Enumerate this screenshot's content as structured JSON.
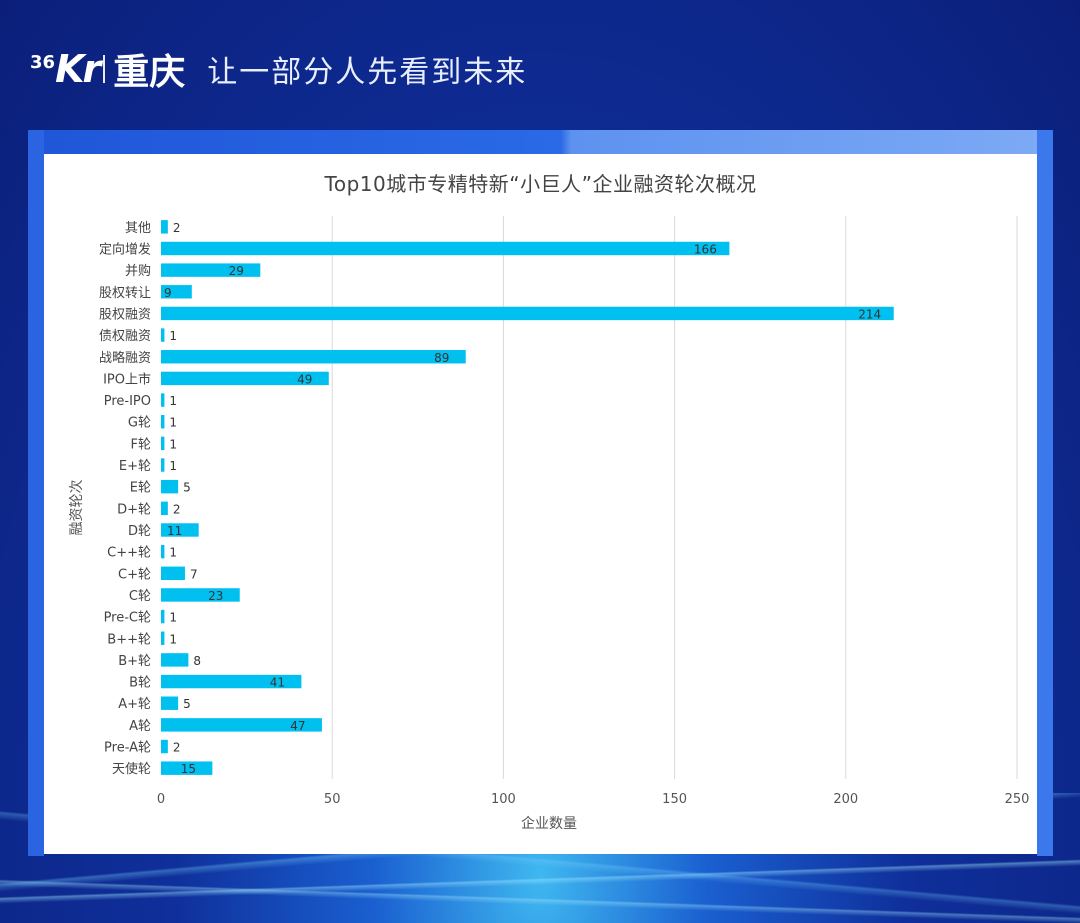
{
  "header": {
    "logo_text": "Kr",
    "logo_prefix": "36",
    "city": "重庆",
    "slogan": "让一部分人先看到未来"
  },
  "colors": {
    "bar": "#00c0f0",
    "grid": "#d9d9d9",
    "x_tick_highlight": "#c080c8",
    "x_title": "#c9b8e0"
  },
  "chart_data": {
    "type": "bar",
    "orientation": "horizontal",
    "title": "Top10城市专精特新“小巨人”企业融资轮次概况",
    "xlabel": "企业数量",
    "ylabel": "融资轮次",
    "xlim": [
      0,
      250
    ],
    "xticks": [
      0,
      50,
      100,
      150,
      200,
      250
    ],
    "grid": true,
    "categories": [
      "其他",
      "定向增发",
      "并购",
      "股权转让",
      "股权融资",
      "债权融资",
      "战略融资",
      "IPO上市",
      "Pre-IPO",
      "G轮",
      "F轮",
      "E+轮",
      "E轮",
      "D+轮",
      "D轮",
      "C++轮",
      "C+轮",
      "C轮",
      "Pre-C轮",
      "B++轮",
      "B+轮",
      "B轮",
      "A+轮",
      "A轮",
      "Pre-A轮",
      "天使轮"
    ],
    "values": [
      2,
      166,
      29,
      9,
      214,
      1,
      89,
      49,
      1,
      1,
      1,
      1,
      5,
      2,
      11,
      1,
      7,
      23,
      1,
      1,
      8,
      41,
      5,
      47,
      2,
      15
    ]
  }
}
